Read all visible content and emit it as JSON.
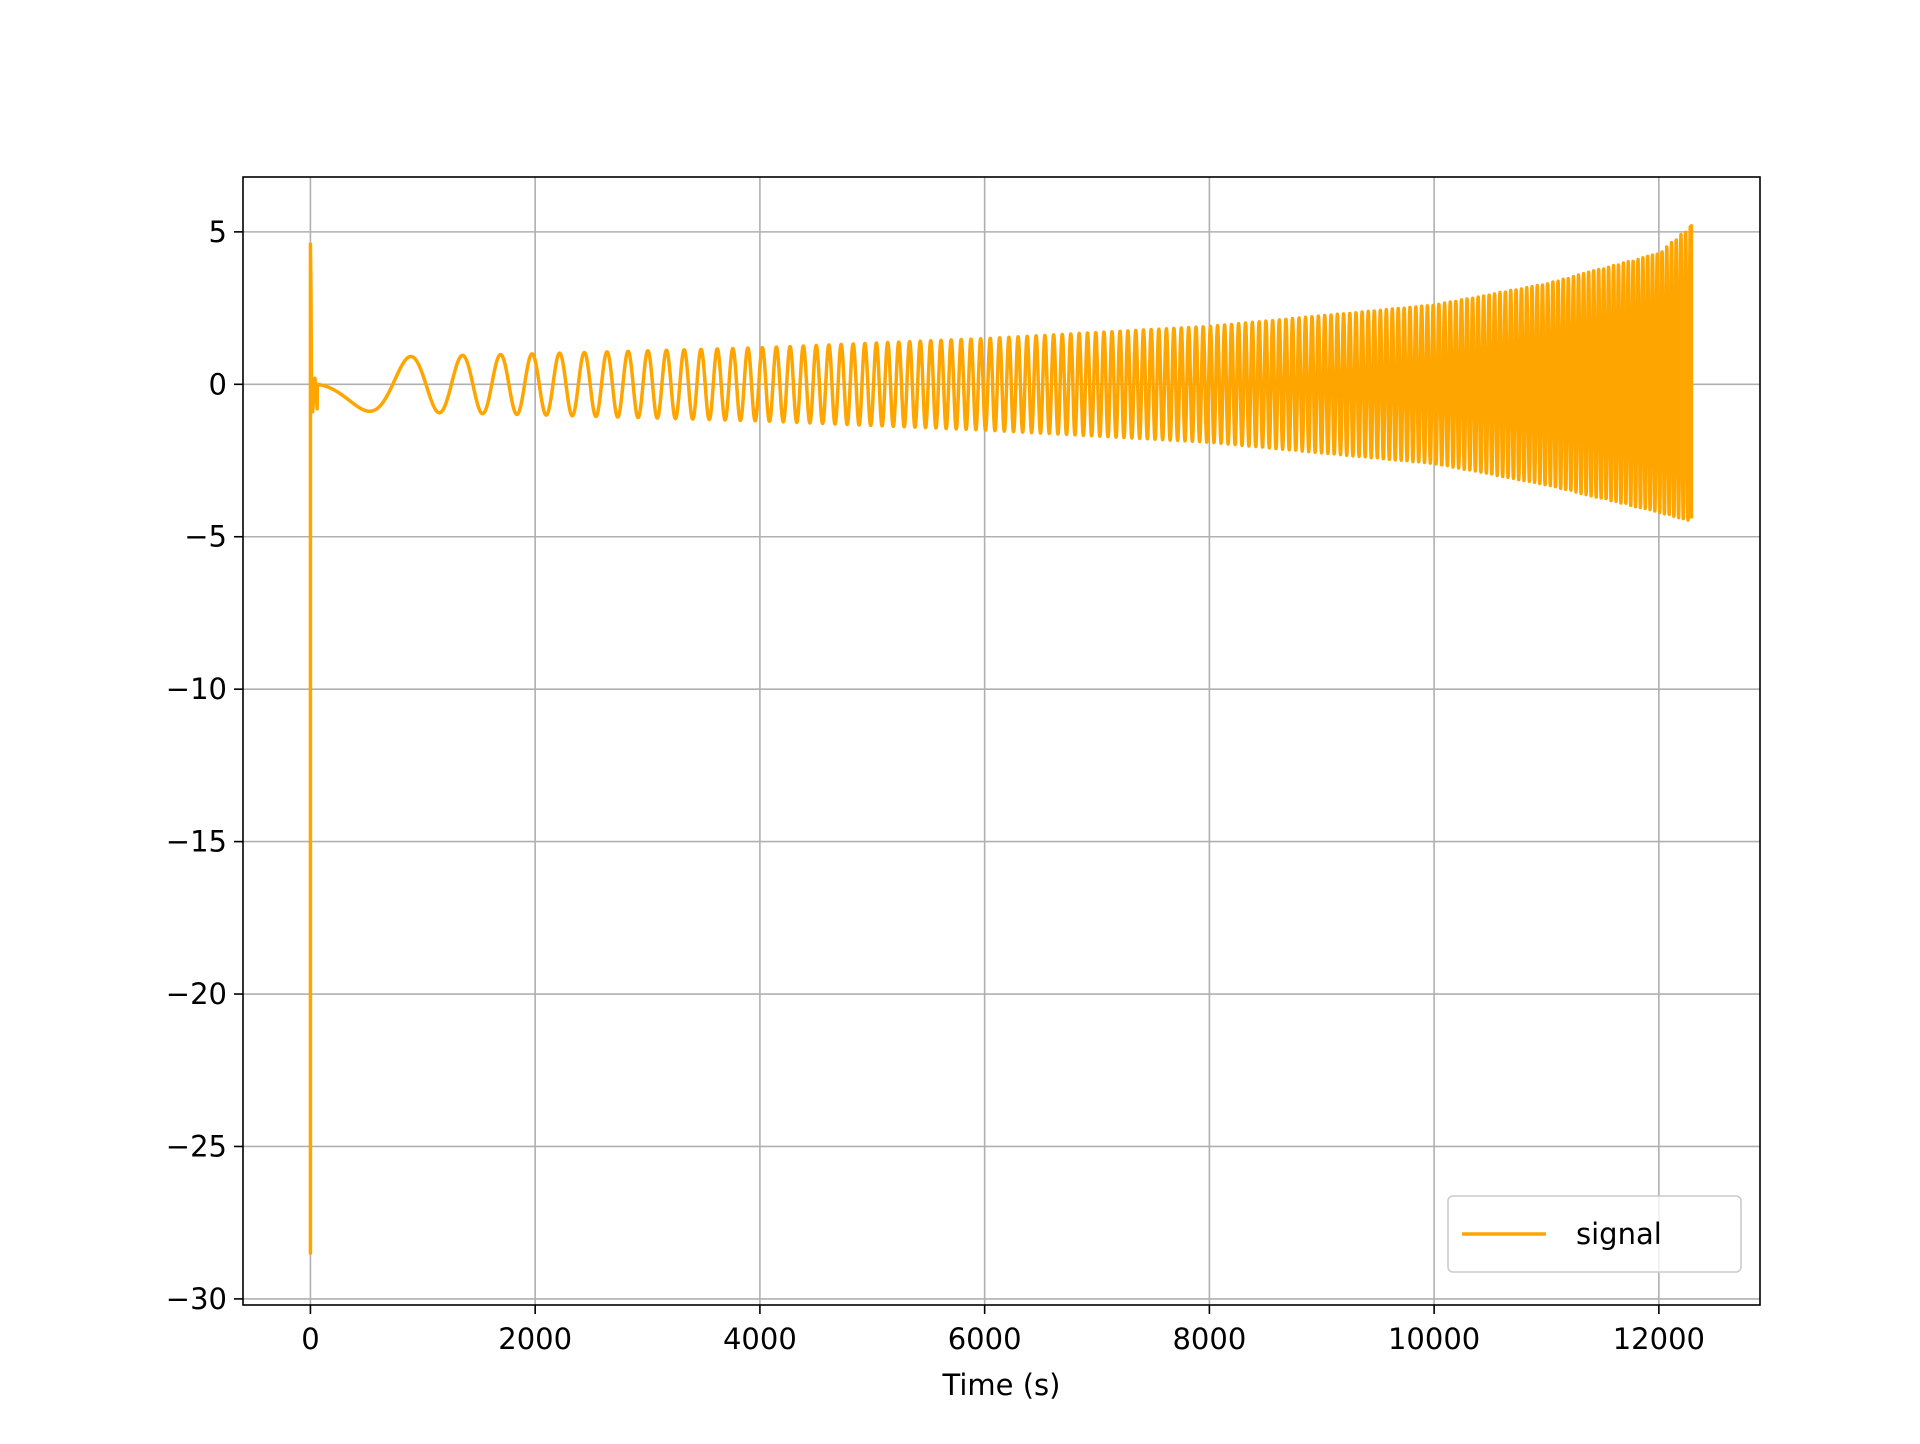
{
  "chart_data": {
    "type": "line",
    "title": "",
    "xlabel": "Time (s)",
    "ylabel": "",
    "xlim": [
      -600,
      12900
    ],
    "ylim": [
      -30.2,
      6.8
    ],
    "xticks": [
      0,
      2000,
      4000,
      6000,
      8000,
      10000,
      12000
    ],
    "xtick_labels": [
      "0",
      "2000",
      "4000",
      "6000",
      "8000",
      "10000",
      "12000"
    ],
    "yticks": [
      5,
      0,
      -5,
      -10,
      -15,
      -20,
      -25,
      -30
    ],
    "ytick_labels": [
      "5",
      "0",
      "−5",
      "−10",
      "−15",
      "−20",
      "−25",
      "−30"
    ],
    "grid": true,
    "legend_position": "lower-right",
    "colors": {
      "series": "#ffa500",
      "grid": "#b0b0b0",
      "axes": "#000000",
      "legend_border": "#cccccc"
    },
    "series": [
      {
        "name": "signal",
        "description": "initial transient spike near t=0 then chirp-like oscillation with slowly growing amplitude",
        "transient": {
          "x": [
            0,
            0,
            0,
            5,
            10,
            20,
            40,
            60
          ],
          "y": [
            0,
            -28.5,
            4.6,
            3.0,
            -0.5,
            -0.9,
            0.2,
            -0.8
          ]
        },
        "oscillation": {
          "t_start": 60,
          "t_end": 12290,
          "approx_cycles": 148,
          "amplitude_envelope_x": [
            100,
            2000,
            4000,
            6000,
            8000,
            10000,
            11000,
            12000,
            12290
          ],
          "amplitude_envelope_y": [
            0.85,
            1.0,
            1.2,
            1.5,
            1.9,
            2.6,
            3.3,
            4.3,
            5.2
          ],
          "trough_envelope_y": [
            -0.85,
            -1.0,
            -1.2,
            -1.5,
            -1.9,
            -2.6,
            -3.3,
            -4.2,
            -4.5
          ],
          "final_x": 12290,
          "final_y": -4.4
        }
      }
    ]
  }
}
